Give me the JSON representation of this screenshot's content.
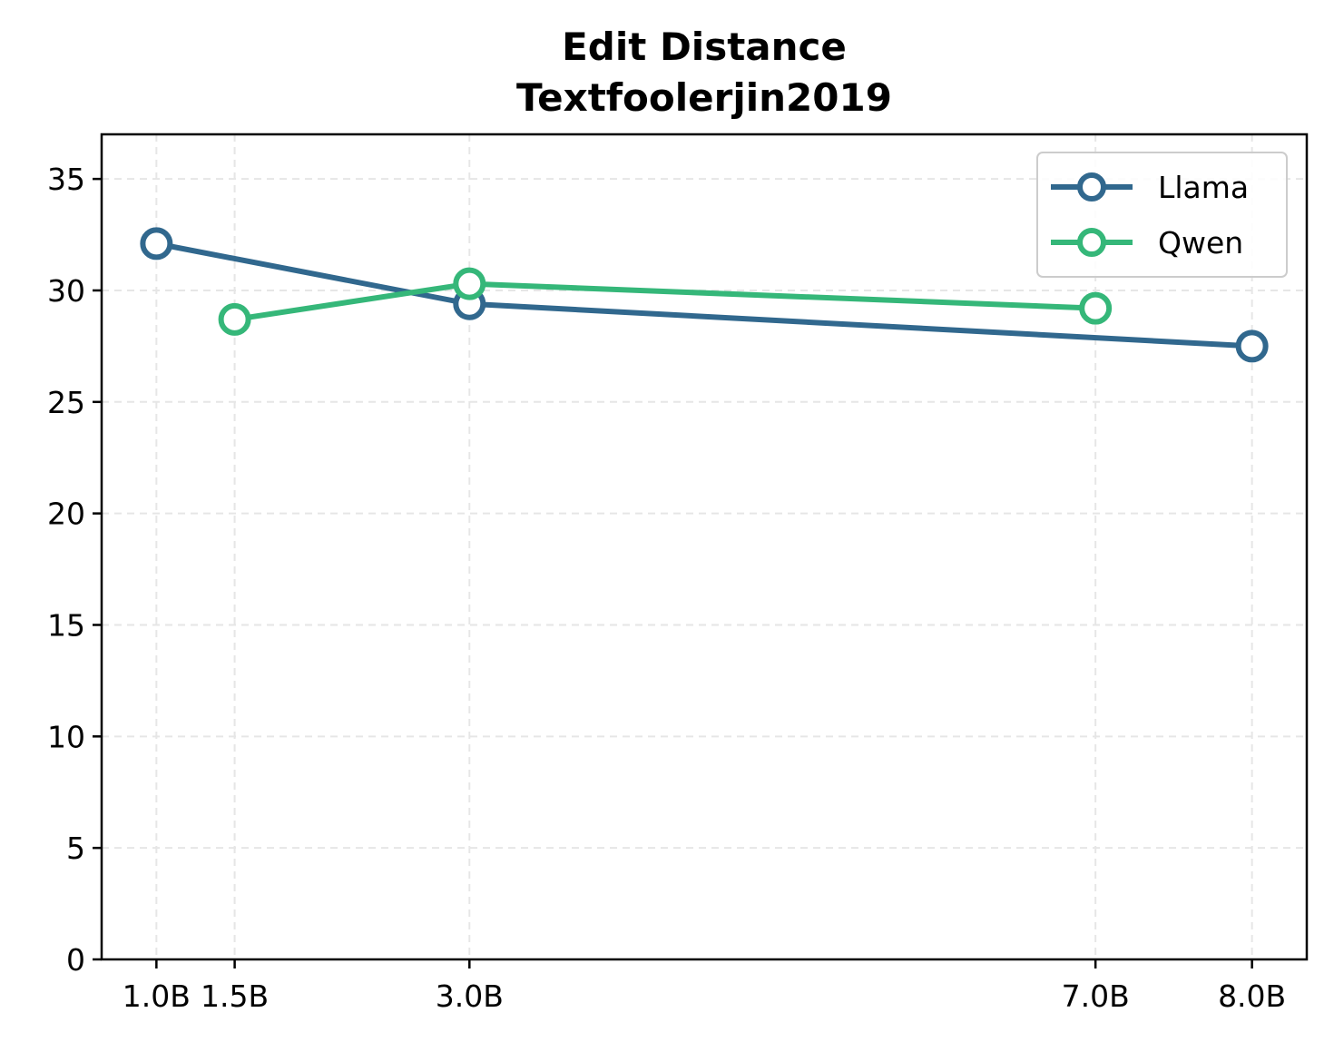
{
  "chart_data": {
    "type": "line",
    "title_lines": [
      "Edit Distance",
      "Textfoolerjin2019"
    ],
    "xlabel": "",
    "ylabel": "",
    "x_ticks": [
      {
        "value": 1.0,
        "label": "1.0B"
      },
      {
        "value": 1.5,
        "label": "1.5B"
      },
      {
        "value": 3.0,
        "label": "3.0B"
      },
      {
        "value": 7.0,
        "label": "7.0B"
      },
      {
        "value": 8.0,
        "label": "8.0B"
      }
    ],
    "xlim": [
      0.65,
      8.35
    ],
    "ylim": [
      0,
      37
    ],
    "y_ticks": [
      0,
      5,
      10,
      15,
      20,
      25,
      30,
      35
    ],
    "grid": true,
    "legend_position": "top-right",
    "series": [
      {
        "name": "Llama",
        "color": "#31688e",
        "x": [
          1.0,
          3.0,
          8.0
        ],
        "y": [
          32.1,
          29.4,
          27.5
        ]
      },
      {
        "name": "Qwen",
        "color": "#35b779",
        "x": [
          1.5,
          3.0,
          7.0
        ],
        "y": [
          28.7,
          30.3,
          29.2
        ]
      }
    ]
  }
}
